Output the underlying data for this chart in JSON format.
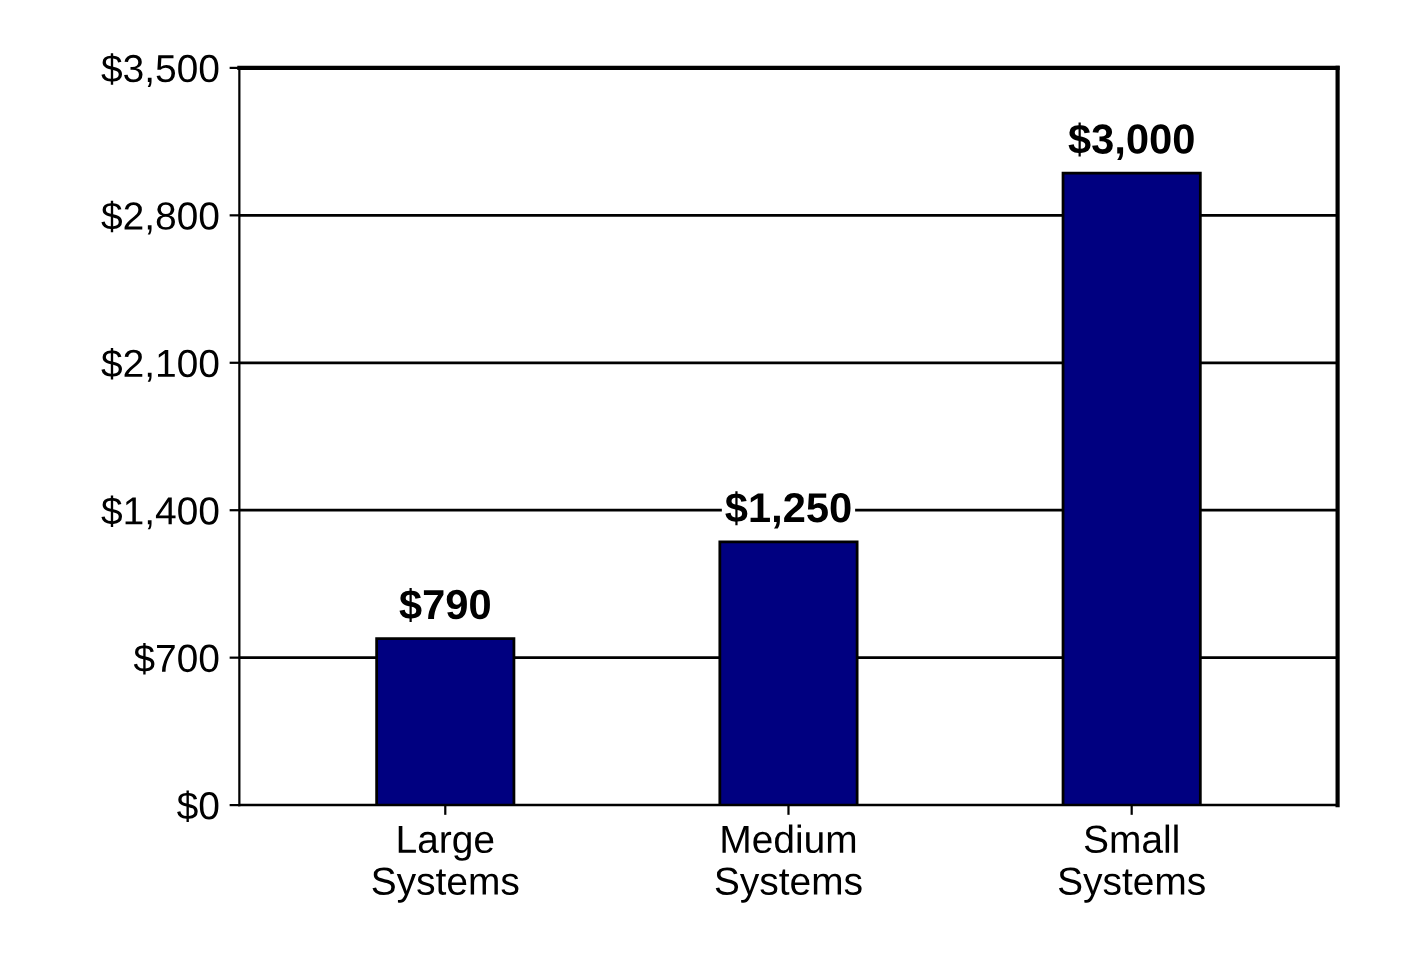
{
  "chart_data": {
    "type": "bar",
    "categories": [
      "Large\nSystems",
      "Medium\nSystems",
      "Small\nSystems"
    ],
    "values": [
      790,
      1250,
      3000
    ],
    "value_labels": [
      "$790",
      "$1,250",
      "$3,000"
    ],
    "color": "#000080",
    "ylim": [
      0,
      3500
    ],
    "yticks": [
      {
        "value": 0,
        "label": "$0"
      },
      {
        "value": 700,
        "label": "$700"
      },
      {
        "value": 1400,
        "label": "$1,400"
      },
      {
        "value": 2100,
        "label": "$2,100"
      },
      {
        "value": 2800,
        "label": "$2,800"
      },
      {
        "value": 3500,
        "label": "$3,500"
      }
    ],
    "grid": "y",
    "legend": false
  }
}
